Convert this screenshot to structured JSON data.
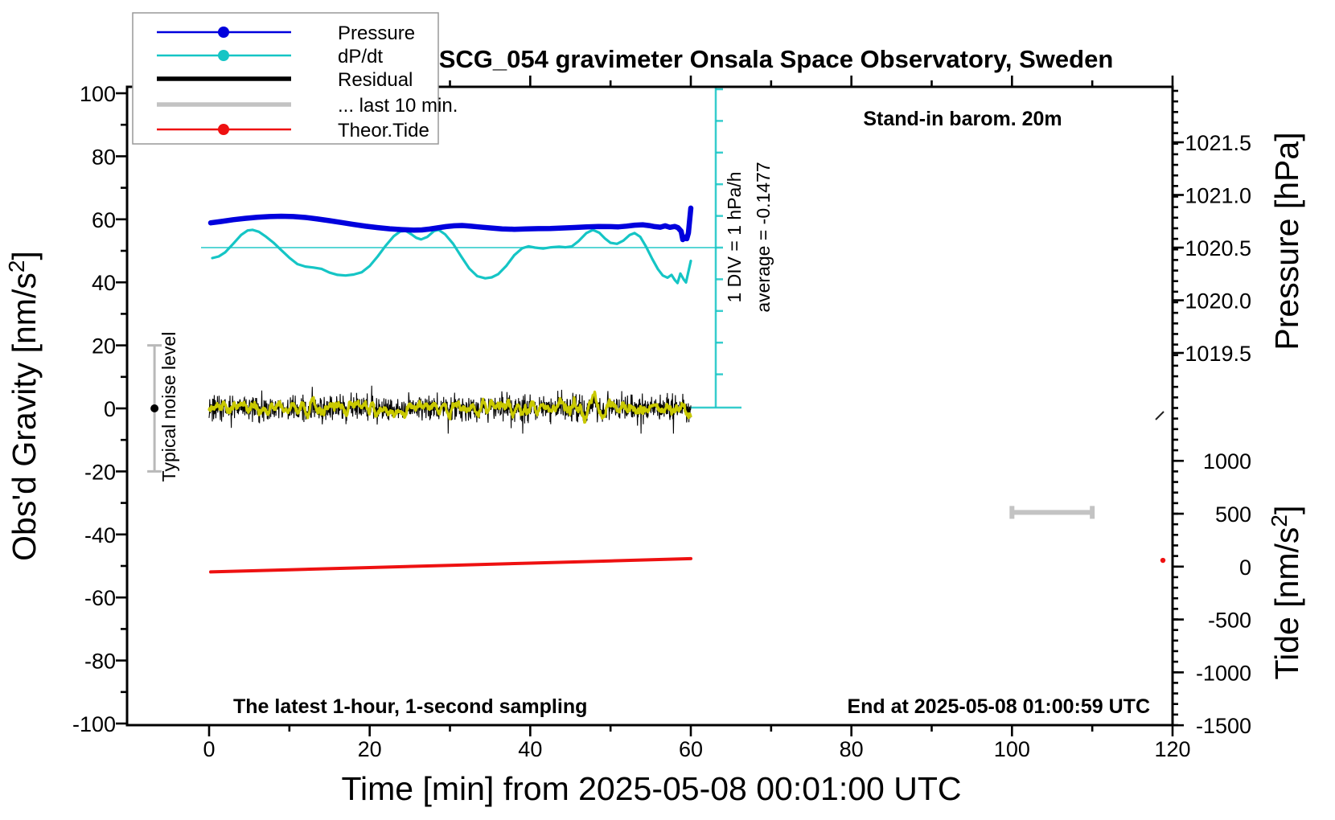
{
  "title": "SCG_054 gravimeter Onsala Space Observatory, Sweden",
  "annotations": {
    "barometer": "Stand-in barom. 20m",
    "sampling": "The latest 1-hour, 1-second sampling",
    "end_time": "End at 2025-05-08 01:00:59 UTC",
    "div_scale": "1 DIV = 1 hPa/h",
    "div_average": "average = -0.1477",
    "noise_level": "Typical noise level"
  },
  "legend": {
    "items": [
      {
        "label": "Pressure",
        "color": "#0000dd",
        "dot": true,
        "thick": false
      },
      {
        "label": "dP/dt",
        "color": "#15c5c5",
        "dot": true,
        "thick": false
      },
      {
        "label": "Residual",
        "color": "#000000",
        "dot": false,
        "thick": true
      },
      {
        "label": "... last 10 min.",
        "color": "#c3c3c3",
        "dot": false,
        "thick": true
      },
      {
        "label": "Theor.Tide",
        "color": "#ee1111",
        "dot": true,
        "thick": false
      }
    ]
  },
  "axes": {
    "x": {
      "title": "Time [min] from 2025-05-08 00:01:00 UTC",
      "tick_labels": [
        "0",
        "20",
        "40",
        "60",
        "80",
        "100",
        "120"
      ],
      "minor_step_min": 10
    },
    "y_left": {
      "title_pre": "Obs'd Gravity [nm/s",
      "title_sup": "2",
      "title_post": "]",
      "tick_labels": [
        "100",
        "80",
        "60",
        "40",
        "20",
        "0",
        "-20",
        "-40",
        "-60",
        "-80",
        "-100"
      ]
    },
    "pressure": {
      "title": "Pressure [hPa]",
      "tick_labels": [
        "1021.5",
        "1021.0",
        "1020.5",
        "1020.0",
        "1019.5"
      ]
    },
    "tide": {
      "title_pre": "Tide [nm/s",
      "title_sup": "2",
      "title_post": "]",
      "tick_labels": [
        "1000",
        "500",
        "0",
        "-500",
        "-1000",
        "-1500"
      ]
    }
  },
  "chart_data": {
    "type": "line",
    "title": "SCG_054 gravimeter Onsala Space Observatory, Sweden",
    "xlabel": "Time [min] from 2025-05-08 00:01:00 UTC",
    "x_range": [
      0,
      120
    ],
    "grid": false,
    "axes_info": {
      "gravity": {
        "label": "Obs'd Gravity [nm/s2]",
        "range": [
          -100,
          100
        ],
        "side": "left"
      },
      "pressure": {
        "label": "Pressure [hPa]",
        "tick_values": [
          1021.5,
          1021.0,
          1020.5,
          1020.0,
          1019.5
        ],
        "side": "right-upper"
      },
      "tide": {
        "label": "Tide [nm/s2]",
        "tick_values": [
          1000,
          500,
          0,
          -500,
          -1000,
          -1500
        ],
        "side": "right-lower"
      },
      "dpdt": {
        "scale_note": "1 DIV = 1 hPa/h",
        "average_hPa_per_h": -0.1477,
        "zero_ref_gravity": 51
      }
    },
    "series": [
      {
        "name": "Pressure",
        "axis": "pressure",
        "unit": "hPa",
        "color": "#0000dd",
        "width": 6.5,
        "points": [
          [
            0.2,
            1020.735
          ],
          [
            1.5,
            1020.748
          ],
          [
            3,
            1020.765
          ],
          [
            4.5,
            1020.778
          ],
          [
            6,
            1020.788
          ],
          [
            7.5,
            1020.795
          ],
          [
            9,
            1020.798
          ],
          [
            10.5,
            1020.795
          ],
          [
            12,
            1020.786
          ],
          [
            13.5,
            1020.772
          ],
          [
            15,
            1020.756
          ],
          [
            16.5,
            1020.738
          ],
          [
            18,
            1020.72
          ],
          [
            19.5,
            1020.703
          ],
          [
            21,
            1020.69
          ],
          [
            22.5,
            1020.679
          ],
          [
            24,
            1020.671
          ],
          [
            25.5,
            1020.666
          ],
          [
            26.5,
            1020.668
          ],
          [
            27.5,
            1020.676
          ],
          [
            28.5,
            1020.688
          ],
          [
            29.5,
            1020.699
          ],
          [
            30.5,
            1020.707
          ],
          [
            31.5,
            1020.71
          ],
          [
            32.5,
            1020.704
          ],
          [
            33.5,
            1020.697
          ],
          [
            35,
            1020.687
          ],
          [
            36.5,
            1020.678
          ],
          [
            38,
            1020.674
          ],
          [
            39.5,
            1020.677
          ],
          [
            41,
            1020.68
          ],
          [
            42.5,
            1020.682
          ],
          [
            44,
            1020.686
          ],
          [
            45.5,
            1020.691
          ],
          [
            47,
            1020.697
          ],
          [
            48.5,
            1020.7
          ],
          [
            50,
            1020.699
          ],
          [
            51,
            1020.697
          ],
          [
            52,
            1020.704
          ],
          [
            53,
            1020.713
          ],
          [
            54,
            1020.717
          ],
          [
            54.8,
            1020.709
          ],
          [
            55.5,
            1020.699
          ],
          [
            56.2,
            1020.694
          ],
          [
            56.8,
            1020.707
          ],
          [
            57.4,
            1020.692
          ],
          [
            58,
            1020.701
          ],
          [
            58.4,
            1020.689
          ],
          [
            58.8,
            1020.655
          ],
          [
            59,
            1020.576
          ],
          [
            59.3,
            1020.6
          ],
          [
            59.5,
            1020.585
          ],
          [
            59.7,
            1020.64
          ],
          [
            60,
            1020.875
          ]
        ]
      },
      {
        "name": "dP/dt",
        "axis": "dpdt",
        "unit": "hPa/h",
        "color": "#15c5c5",
        "width": 3.2,
        "points": [
          [
            0.4,
            -0.33
          ],
          [
            1.2,
            -0.28
          ],
          [
            2,
            -0.15
          ],
          [
            3,
            0.12
          ],
          [
            4,
            0.4
          ],
          [
            4.8,
            0.54
          ],
          [
            5.4,
            0.56
          ],
          [
            6.2,
            0.5
          ],
          [
            7,
            0.36
          ],
          [
            8,
            0.16
          ],
          [
            9,
            -0.08
          ],
          [
            10,
            -0.32
          ],
          [
            11,
            -0.52
          ],
          [
            12,
            -0.6
          ],
          [
            13,
            -0.63
          ],
          [
            14,
            -0.67
          ],
          [
            15,
            -0.79
          ],
          [
            16,
            -0.86
          ],
          [
            17,
            -0.88
          ],
          [
            18,
            -0.85
          ],
          [
            19,
            -0.78
          ],
          [
            20,
            -0.58
          ],
          [
            21,
            -0.28
          ],
          [
            22,
            0.06
          ],
          [
            23,
            0.36
          ],
          [
            23.8,
            0.51
          ],
          [
            24.5,
            0.53
          ],
          [
            25.2,
            0.42
          ],
          [
            25.8,
            0.31
          ],
          [
            26.4,
            0.26
          ],
          [
            27.2,
            0.34
          ],
          [
            28,
            0.52
          ],
          [
            28.6,
            0.56
          ],
          [
            29.4,
            0.42
          ],
          [
            30.4,
            0.12
          ],
          [
            31.4,
            -0.28
          ],
          [
            32.4,
            -0.66
          ],
          [
            33.4,
            -0.9
          ],
          [
            34.4,
            -0.97
          ],
          [
            35.2,
            -0.94
          ],
          [
            36,
            -0.84
          ],
          [
            37,
            -0.58
          ],
          [
            38,
            -0.24
          ],
          [
            39,
            -0.02
          ],
          [
            39.8,
            0.04
          ],
          [
            40.6,
            0.0
          ],
          [
            41.6,
            -0.03
          ],
          [
            42.6,
            0.01
          ],
          [
            43.6,
            0.03
          ],
          [
            44.4,
            0.01
          ],
          [
            45.2,
            0.04
          ],
          [
            46,
            0.2
          ],
          [
            47,
            0.46
          ],
          [
            47.8,
            0.56
          ],
          [
            48.6,
            0.47
          ],
          [
            49.3,
            0.29
          ],
          [
            50,
            0.15
          ],
          [
            50.8,
            0.12
          ],
          [
            51.6,
            0.22
          ],
          [
            52.4,
            0.4
          ],
          [
            53,
            0.46
          ],
          [
            53.7,
            0.34
          ],
          [
            54.4,
            0.04
          ],
          [
            55.2,
            -0.36
          ],
          [
            55.9,
            -0.68
          ],
          [
            56.5,
            -0.88
          ],
          [
            57.1,
            -0.95
          ],
          [
            57.6,
            -0.86
          ],
          [
            58,
            -1.02
          ],
          [
            58.35,
            -1.12
          ],
          [
            58.7,
            -0.82
          ],
          [
            59.1,
            -1.0
          ],
          [
            59.4,
            -1.1
          ],
          [
            60,
            -0.42
          ]
        ]
      },
      {
        "name": "Residual",
        "axis": "gravity",
        "unit": "nm/s2",
        "color": "#000000",
        "smoothed_color": "#c9c900",
        "description": "1-second residual noise centered on 0 nm/s2 with dark-yellow smoothed core",
        "noise": {
          "x_range": [
            0,
            60
          ],
          "n": 1500,
          "seed": 42,
          "sigma": 3.4,
          "spike_fraction": 0.05,
          "spike_gain": 1.9,
          "clip": 8,
          "smooth_halfwidth": 6,
          "smooth_gain": 2.2
        }
      },
      {
        "name": "Theor.Tide",
        "axis": "tide",
        "unit": "nm/s2",
        "color": "#ee1111",
        "width": 4,
        "points": [
          [
            0.2,
            -50
          ],
          [
            10,
            -29.5
          ],
          [
            20,
            -9
          ],
          [
            30,
            12
          ],
          [
            40,
            33
          ],
          [
            50,
            54
          ],
          [
            60,
            75
          ]
        ]
      }
    ],
    "markers": {
      "last10min_bar": {
        "from_min": 100,
        "to_min": 110,
        "gravity": -33,
        "color": "#c3c3c3"
      },
      "noise_level_bar": {
        "min": -6.8,
        "gravity_range": [
          -20,
          20
        ],
        "dot_gravity": 0,
        "color": "#b9b9b9"
      },
      "latest_residual": {
        "min": 118.4,
        "gravity": -2.3,
        "color": "#222222"
      },
      "latest_tide": {
        "min": 118.8,
        "tide": 59,
        "color": "#ee1111"
      }
    }
  }
}
